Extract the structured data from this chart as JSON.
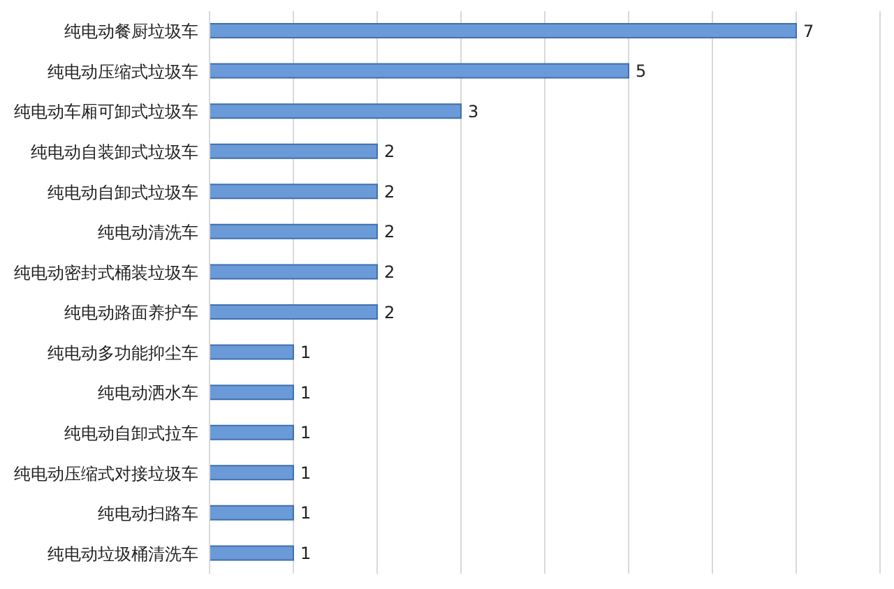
{
  "chart_data": {
    "type": "bar",
    "orientation": "horizontal",
    "categories": [
      "纯电动餐厨垃圾车",
      "纯电动压缩式垃圾车",
      "纯电动车厢可卸式垃圾车",
      "纯电动自装卸式垃圾车",
      "纯电动自卸式垃圾车",
      "纯电动清洗车",
      "纯电动密封式桶装垃圾车",
      "纯电动路面养护车",
      "纯电动多功能抑尘车",
      "纯电动洒水车",
      "纯电动自卸式拉车",
      "纯电动压缩式对接垃圾车",
      "纯电动扫路车",
      "纯电动垃圾桶清洗车"
    ],
    "values": [
      7,
      5,
      3,
      2,
      2,
      2,
      2,
      2,
      1,
      1,
      1,
      1,
      1,
      1
    ],
    "color": "#6a9bd8",
    "xlim": [
      0,
      8
    ],
    "xticks": [
      {
        "value": 0,
        "label": null
      },
      {
        "value": 1,
        "label": null
      },
      {
        "value": 2,
        "label": null
      },
      {
        "value": 3,
        "label": null
      },
      {
        "value": 4,
        "label": null
      },
      {
        "value": 5,
        "label": null
      },
      {
        "value": 6,
        "label": null
      },
      {
        "value": 7,
        "label": null
      },
      {
        "value": 8,
        "label": null
      }
    ],
    "tick_labels": "y",
    "grid": "x",
    "data_labels": true
  }
}
